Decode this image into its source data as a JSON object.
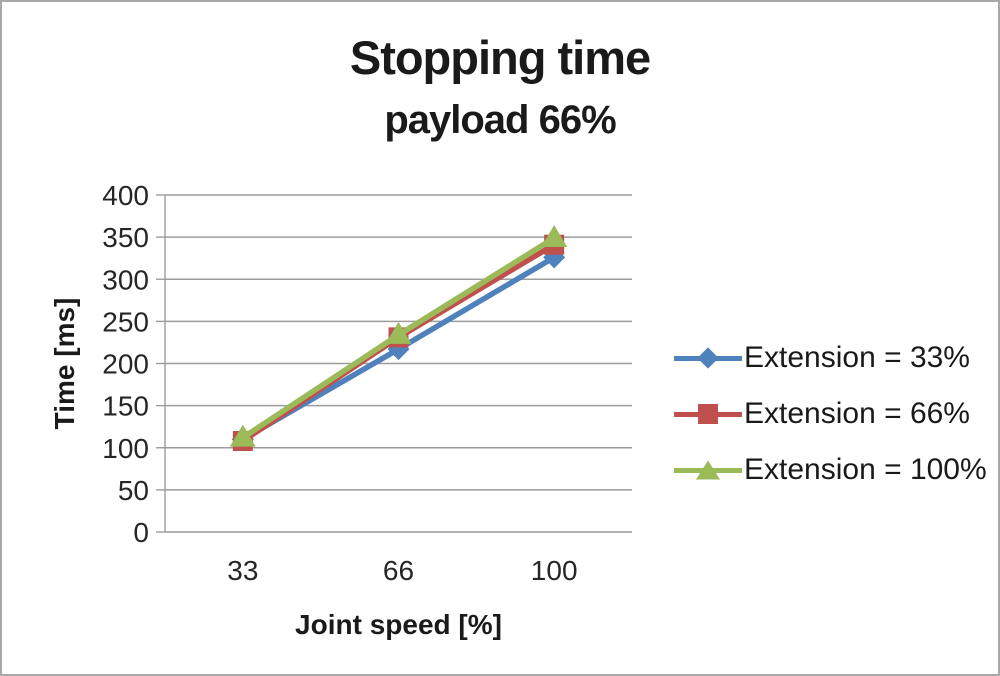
{
  "window": {
    "background": "#ffffff",
    "border_color": "#a8a8a8"
  },
  "chart_data": {
    "type": "line",
    "title": "Stopping time",
    "subtitle": "payload 66%",
    "xlabel": "Joint speed [%]",
    "ylabel": "Time [ms]",
    "categories": [
      "33",
      "66",
      "100"
    ],
    "ylim": [
      0,
      400
    ],
    "ytick_step": 50,
    "yticks": [
      0,
      50,
      100,
      150,
      200,
      250,
      300,
      350,
      400
    ],
    "grid": true,
    "legend_position": "right",
    "axis_color": "#9c9c9c",
    "tick_label_color": "#262626",
    "title_color": "#1a1a1a",
    "series": [
      {
        "name": "Extension = 33%",
        "marker": "diamond",
        "color": "#4f81bd",
        "values": [
          110,
          217,
          326
        ]
      },
      {
        "name": "Extension = 66%",
        "marker": "square",
        "color": "#c0504d",
        "values": [
          108,
          231,
          341
        ]
      },
      {
        "name": "Extension = 100%",
        "marker": "triangle",
        "color": "#9bbb59",
        "values": [
          112,
          234,
          349
        ]
      }
    ]
  }
}
